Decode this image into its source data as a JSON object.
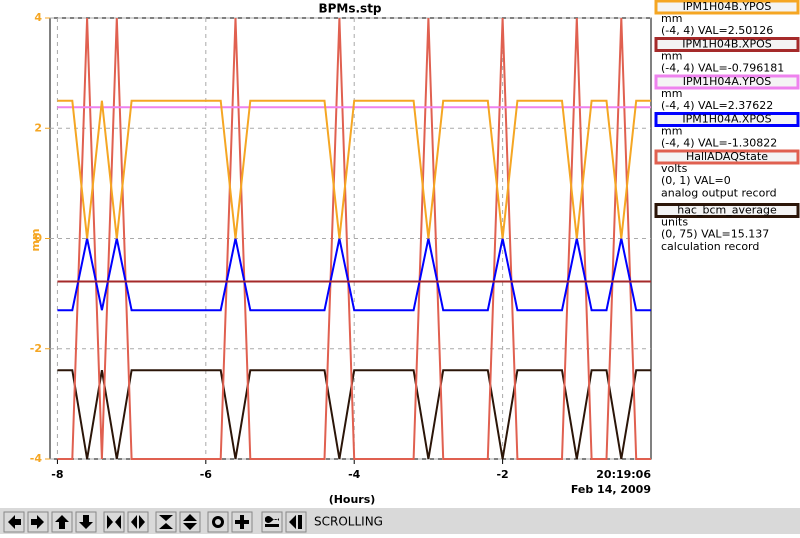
{
  "chart_data": {
    "type": "line",
    "title": "BPMs.stp",
    "y_label": "mm",
    "x_label": "(Hours)",
    "end_time": "20:19:06",
    "end_date": "Feb 14, 2009",
    "xlim": [
      -8.1,
      0
    ],
    "xticks": [
      -8,
      -6,
      -4,
      -2
    ],
    "ylim": [
      -4,
      4
    ],
    "yticks": [
      -4,
      -2,
      0,
      2,
      4
    ],
    "axis_color": "#f5a623",
    "grid": true,
    "x": [
      -8,
      -7.8,
      -7.6,
      -7.4,
      -7.2,
      -7,
      -6.8,
      -6.6,
      -6.4,
      -6.2,
      -6,
      -5.8,
      -5.6,
      -5.4,
      -5.2,
      -5,
      -4.8,
      -4.6,
      -4.4,
      -4.2,
      -4,
      -3.8,
      -3.6,
      -3.4,
      -3.2,
      -3,
      -2.8,
      -2.6,
      -2.4,
      -2.2,
      -2,
      -1.8,
      -1.6,
      -1.4,
      -1.2,
      -1,
      -0.8,
      -0.6,
      -0.4,
      -0.2,
      0
    ],
    "series": [
      {
        "name": "IPM1H04B.YPOS",
        "color": "#f5a623",
        "units": "mm",
        "info": "(-4, 4) VAL=2.50126",
        "ylim": [
          -4,
          4
        ],
        "values": [
          2.5,
          2.5,
          0,
          2.5,
          0,
          2.5,
          2.5,
          2.5,
          2.5,
          2.5,
          2.5,
          2.5,
          0,
          2.5,
          2.5,
          2.5,
          2.5,
          2.5,
          2.5,
          0,
          2.5,
          2.5,
          2.5,
          2.5,
          2.5,
          0,
          2.5,
          2.5,
          2.5,
          2.5,
          0,
          2.5,
          2.5,
          2.5,
          2.5,
          0,
          2.5,
          2.5,
          0,
          2.5,
          2.5
        ]
      },
      {
        "name": "IPM1H04B.XPOS",
        "color": "#a52a2a",
        "units": "mm",
        "info": "(-4, 4) VAL=-0.796181",
        "ylim": [
          -4,
          4
        ],
        "values": [
          -0.78,
          -0.78,
          -0.78,
          -0.78,
          -0.78,
          -0.78,
          -0.78,
          -0.78,
          -0.78,
          -0.78,
          -0.78,
          -0.78,
          -0.78,
          -0.78,
          -0.78,
          -0.78,
          -0.78,
          -0.78,
          -0.78,
          -0.78,
          -0.78,
          -0.78,
          -0.78,
          -0.78,
          -0.78,
          -0.78,
          -0.78,
          -0.78,
          -0.78,
          -0.78,
          -0.78,
          -0.78,
          -0.78,
          -0.78,
          -0.78,
          -0.78,
          -0.78,
          -0.78,
          -0.78,
          -0.78,
          -0.78
        ]
      },
      {
        "name": "IPM1H04A.YPOS",
        "color": "#ee82ee",
        "units": "mm",
        "info": "(-4, 4) VAL=2.37622",
        "ylim": [
          -4,
          4
        ],
        "values": [
          2.38,
          2.38,
          2.38,
          2.38,
          2.38,
          2.38,
          2.38,
          2.38,
          2.38,
          2.38,
          2.38,
          2.38,
          2.38,
          2.38,
          2.38,
          2.38,
          2.38,
          2.38,
          2.38,
          2.38,
          2.38,
          2.38,
          2.38,
          2.38,
          2.38,
          2.38,
          2.38,
          2.38,
          2.38,
          2.38,
          2.38,
          2.38,
          2.38,
          2.38,
          2.38,
          2.38,
          2.38,
          2.38,
          2.38,
          2.38,
          2.38
        ]
      },
      {
        "name": "IPM1H04A.XPOS",
        "color": "#0000ff",
        "units": "mm",
        "info": "(-4, 4) VAL=-1.30822",
        "ylim": [
          -4,
          4
        ],
        "values": [
          -1.3,
          -1.3,
          0,
          -1.3,
          0,
          -1.3,
          -1.3,
          -1.3,
          -1.3,
          -1.3,
          -1.3,
          -1.3,
          0,
          -1.3,
          -1.3,
          -1.3,
          -1.3,
          -1.3,
          -1.3,
          0,
          -1.3,
          -1.3,
          -1.3,
          -1.3,
          -1.3,
          0,
          -1.3,
          -1.3,
          -1.3,
          -1.3,
          0,
          -1.3,
          -1.3,
          -1.3,
          -1.3,
          0,
          -1.3,
          -1.3,
          0,
          -1.3,
          -1.3
        ]
      },
      {
        "name": "HallADAQState",
        "color": "#e06050",
        "units": "volts",
        "info": "(0, 1) VAL=0",
        "record": "analog output record",
        "ylim": [
          0,
          1
        ],
        "values": [
          0,
          0,
          1,
          0,
          1,
          0,
          0,
          0,
          0,
          0,
          0,
          0,
          1,
          0,
          0,
          0,
          0,
          0,
          0,
          1,
          0,
          0,
          0,
          0,
          0,
          1,
          0,
          0,
          0,
          0,
          1,
          0,
          0,
          0,
          0,
          1,
          0,
          0,
          1,
          0,
          0
        ]
      },
      {
        "name": "hac_bcm_average",
        "color": "#2b1508",
        "units": "units",
        "info": "(0, 75) VAL=15.137",
        "record": "calculation record",
        "ylim": [
          0,
          75
        ],
        "values": [
          15.1,
          15.1,
          0,
          15.1,
          0,
          15.1,
          15.1,
          15.1,
          15.1,
          15.1,
          15.1,
          15.1,
          0,
          15.1,
          15.1,
          15.1,
          15.1,
          15.1,
          15.1,
          0,
          15.1,
          15.1,
          15.1,
          15.1,
          15.1,
          0,
          15.1,
          15.1,
          15.1,
          15.1,
          0,
          15.1,
          15.1,
          15.1,
          15.1,
          0,
          15.1,
          15.1,
          0,
          15.1,
          15.1
        ]
      }
    ]
  },
  "toolbar": {
    "status": "SCROLLING"
  }
}
